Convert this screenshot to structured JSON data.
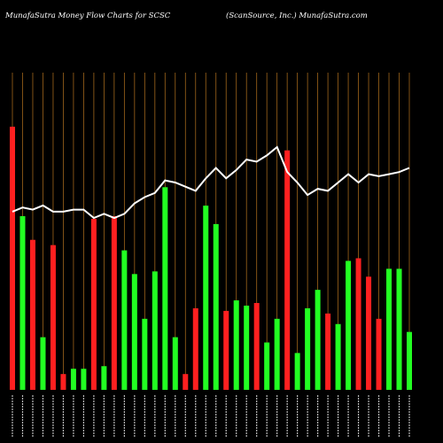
{
  "header": {
    "left": "MunafaSutra  Money Flow  Charts for SCSC",
    "right": "(ScanSource,  Inc.) MunafaSutra.com"
  },
  "colors": {
    "background": "#000000",
    "up": "#22ff22",
    "down": "#ff2020",
    "gridline": "#a0661b",
    "line": "#ffffff",
    "text": "#ffffff"
  },
  "chart_data": {
    "type": "bar",
    "title": "MunafaSutra  Money Flow  Charts for SCSC",
    "subtitle": "(ScanSource,  Inc.) MunafaSutra.com",
    "xlabel": "",
    "ylabel": "",
    "ylim": [
      0,
      100
    ],
    "grid": "vertical",
    "legend": "none",
    "bars": [
      {
        "value": 100,
        "dir": "down"
      },
      {
        "value": 66,
        "dir": "up"
      },
      {
        "value": 57,
        "dir": "down"
      },
      {
        "value": 20,
        "dir": "up"
      },
      {
        "value": 55,
        "dir": "down"
      },
      {
        "value": 6,
        "dir": "down"
      },
      {
        "value": 8,
        "dir": "up"
      },
      {
        "value": 8,
        "dir": "up"
      },
      {
        "value": 65,
        "dir": "down"
      },
      {
        "value": 9,
        "dir": "up"
      },
      {
        "value": 66,
        "dir": "down"
      },
      {
        "value": 53,
        "dir": "up"
      },
      {
        "value": 44,
        "dir": "up"
      },
      {
        "value": 27,
        "dir": "up"
      },
      {
        "value": 45,
        "dir": "up"
      },
      {
        "value": 77,
        "dir": "up"
      },
      {
        "value": 20,
        "dir": "up"
      },
      {
        "value": 6,
        "dir": "down"
      },
      {
        "value": 31,
        "dir": "down"
      },
      {
        "value": 70,
        "dir": "up"
      },
      {
        "value": 63,
        "dir": "up"
      },
      {
        "value": 30,
        "dir": "down"
      },
      {
        "value": 34,
        "dir": "up"
      },
      {
        "value": 32,
        "dir": "up"
      },
      {
        "value": 33,
        "dir": "down"
      },
      {
        "value": 18,
        "dir": "up"
      },
      {
        "value": 27,
        "dir": "up"
      },
      {
        "value": 91,
        "dir": "down"
      },
      {
        "value": 14,
        "dir": "up"
      },
      {
        "value": 31,
        "dir": "up"
      },
      {
        "value": 38,
        "dir": "up"
      },
      {
        "value": 29,
        "dir": "down"
      },
      {
        "value": 25,
        "dir": "up"
      },
      {
        "value": 49,
        "dir": "up"
      },
      {
        "value": 50,
        "dir": "down"
      },
      {
        "value": 43,
        "dir": "down"
      },
      {
        "value": 27,
        "dir": "down"
      },
      {
        "value": 46,
        "dir": "up"
      },
      {
        "value": 46,
        "dir": "up"
      },
      {
        "value": 22,
        "dir": "up"
      }
    ],
    "line": [
      69,
      71,
      70,
      72,
      69,
      69,
      70,
      70,
      66,
      68,
      66,
      68,
      73,
      76,
      78,
      84,
      83,
      81,
      79,
      85,
      90,
      85,
      89,
      94,
      93,
      96,
      100,
      88,
      83,
      77,
      80,
      79,
      83,
      87,
      83,
      87,
      86,
      87,
      88,
      90
    ]
  }
}
